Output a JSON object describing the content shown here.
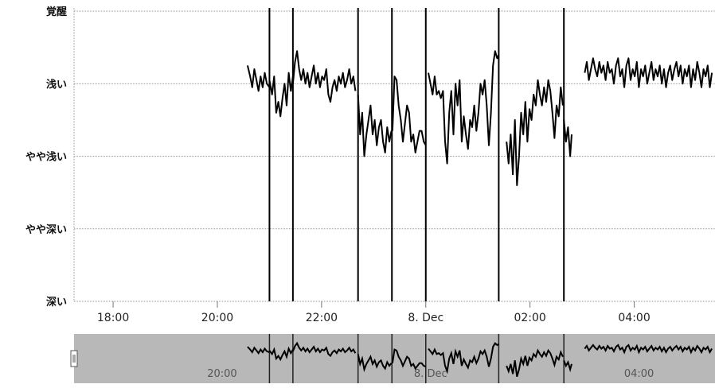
{
  "chart_data": {
    "type": "line",
    "title": "",
    "xlabel": "",
    "ylabel": "",
    "y_categories": [
      "深い",
      "やや深い",
      "やや浅い",
      "浅い",
      "覚醒"
    ],
    "ylim": [
      0,
      4
    ],
    "xlim": [
      17.25,
      29.55
    ],
    "x_ticks": [
      {
        "x": 18,
        "label": "18:00"
      },
      {
        "x": 20,
        "label": "20:00"
      },
      {
        "x": 22,
        "label": "22:00"
      },
      {
        "x": 24,
        "label": "8. Dec"
      },
      {
        "x": 26,
        "label": "02:00"
      },
      {
        "x": 28,
        "label": "04:00"
      }
    ],
    "navigator_ticks": [
      {
        "x": 20,
        "label": "20:00"
      },
      {
        "x": 24,
        "label": "8. Dec"
      },
      {
        "x": 28,
        "label": "04:00"
      }
    ],
    "grid": true,
    "gaps_x": [
      21.0,
      21.45,
      22.7,
      23.35,
      24.0,
      25.4,
      26.65
    ],
    "series": [
      {
        "segments": [
          [
            [
              20.58,
              3.25
            ],
            [
              20.63,
              3.1
            ],
            [
              20.67,
              2.95
            ],
            [
              20.71,
              3.2
            ],
            [
              20.75,
              3.05
            ],
            [
              20.79,
              2.9
            ],
            [
              20.83,
              3.1
            ],
            [
              20.87,
              2.95
            ],
            [
              20.91,
              3.15
            ],
            [
              20.95,
              3.0
            ],
            [
              21.0,
              2.95
            ]
          ],
          [
            [
              21.0,
              3.05
            ],
            [
              21.05,
              2.85
            ],
            [
              21.09,
              3.1
            ],
            [
              21.13,
              2.6
            ],
            [
              21.17,
              2.75
            ],
            [
              21.21,
              2.55
            ],
            [
              21.25,
              2.8
            ],
            [
              21.29,
              3.0
            ],
            [
              21.33,
              2.7
            ],
            [
              21.37,
              3.15
            ],
            [
              21.41,
              2.9
            ],
            [
              21.45,
              3.1
            ]
          ],
          [
            [
              21.45,
              3.0
            ],
            [
              21.49,
              3.3
            ],
            [
              21.53,
              3.45
            ],
            [
              21.57,
              3.2
            ],
            [
              21.61,
              3.05
            ],
            [
              21.65,
              3.2
            ],
            [
              21.69,
              3.0
            ],
            [
              21.73,
              3.15
            ],
            [
              21.77,
              2.95
            ],
            [
              21.81,
              3.1
            ],
            [
              21.85,
              3.25
            ],
            [
              21.89,
              3.0
            ],
            [
              21.93,
              3.15
            ],
            [
              21.97,
              2.95
            ],
            [
              22.01,
              3.1
            ],
            [
              22.05,
              3.05
            ],
            [
              22.09,
              3.2
            ],
            [
              22.13,
              2.85
            ],
            [
              22.17,
              2.75
            ],
            [
              22.21,
              2.95
            ],
            [
              22.25,
              3.05
            ],
            [
              22.29,
              2.9
            ],
            [
              22.33,
              3.1
            ],
            [
              22.37,
              3.0
            ],
            [
              22.41,
              3.15
            ],
            [
              22.45,
              2.95
            ],
            [
              22.49,
              3.05
            ],
            [
              22.53,
              3.2
            ],
            [
              22.57,
              3.0
            ],
            [
              22.61,
              3.1
            ],
            [
              22.65,
              2.9
            ]
          ],
          [
            [
              22.7,
              2.85
            ],
            [
              22.74,
              2.3
            ],
            [
              22.78,
              2.6
            ],
            [
              22.82,
              2.0
            ],
            [
              22.86,
              2.3
            ],
            [
              22.9,
              2.5
            ],
            [
              22.94,
              2.7
            ],
            [
              22.98,
              2.3
            ],
            [
              23.02,
              2.5
            ],
            [
              23.06,
              2.15
            ],
            [
              23.1,
              2.4
            ],
            [
              23.14,
              2.5
            ],
            [
              23.18,
              2.2
            ],
            [
              23.22,
              2.05
            ],
            [
              23.26,
              2.4
            ],
            [
              23.3,
              2.2
            ],
            [
              23.34,
              2.35
            ]
          ],
          [
            [
              23.36,
              2.35
            ],
            [
              23.4,
              3.1
            ],
            [
              23.44,
              3.05
            ],
            [
              23.48,
              2.7
            ],
            [
              23.52,
              2.5
            ],
            [
              23.56,
              2.2
            ],
            [
              23.6,
              2.45
            ],
            [
              23.64,
              2.7
            ],
            [
              23.68,
              2.6
            ],
            [
              23.72,
              2.2
            ],
            [
              23.76,
              2.3
            ],
            [
              23.8,
              2.05
            ],
            [
              23.84,
              2.2
            ],
            [
              23.88,
              2.35
            ],
            [
              23.92,
              2.35
            ],
            [
              23.96,
              2.2
            ],
            [
              24.0,
              2.15
            ]
          ],
          [
            [
              24.05,
              3.15
            ],
            [
              24.09,
              3.0
            ],
            [
              24.13,
              2.85
            ],
            [
              24.17,
              3.1
            ],
            [
              24.21,
              2.85
            ],
            [
              24.25,
              2.9
            ],
            [
              24.29,
              2.8
            ],
            [
              24.33,
              2.9
            ],
            [
              24.37,
              2.2
            ],
            [
              24.41,
              1.9
            ],
            [
              24.45,
              2.6
            ],
            [
              24.49,
              2.9
            ],
            [
              24.53,
              2.3
            ],
            [
              24.57,
              3.0
            ],
            [
              24.61,
              2.7
            ],
            [
              24.65,
              3.05
            ],
            [
              24.69,
              2.2
            ],
            [
              24.73,
              2.55
            ],
            [
              24.77,
              2.3
            ],
            [
              24.81,
              2.1
            ],
            [
              24.85,
              2.5
            ],
            [
              24.89,
              2.4
            ],
            [
              24.93,
              2.7
            ],
            [
              24.97,
              2.35
            ],
            [
              25.01,
              2.6
            ],
            [
              25.05,
              3.0
            ],
            [
              25.09,
              2.85
            ],
            [
              25.13,
              3.05
            ],
            [
              25.17,
              2.7
            ],
            [
              25.21,
              2.15
            ],
            [
              25.25,
              2.6
            ],
            [
              25.29,
              3.25
            ],
            [
              25.33,
              3.45
            ],
            [
              25.37,
              3.35
            ],
            [
              25.4,
              3.4
            ]
          ],
          [
            [
              25.55,
              2.2
            ],
            [
              25.59,
              1.9
            ],
            [
              25.63,
              2.3
            ],
            [
              25.67,
              1.75
            ],
            [
              25.71,
              2.5
            ],
            [
              25.75,
              1.6
            ],
            [
              25.79,
              2.0
            ],
            [
              25.83,
              2.6
            ],
            [
              25.87,
              2.3
            ],
            [
              25.91,
              2.75
            ],
            [
              25.95,
              2.2
            ],
            [
              25.99,
              2.65
            ],
            [
              26.03,
              2.5
            ],
            [
              26.07,
              2.85
            ],
            [
              26.11,
              2.7
            ],
            [
              26.15,
              3.05
            ],
            [
              26.19,
              2.85
            ],
            [
              26.23,
              2.7
            ],
            [
              26.27,
              2.95
            ],
            [
              26.31,
              2.75
            ],
            [
              26.35,
              3.05
            ],
            [
              26.39,
              2.9
            ],
            [
              26.43,
              2.6
            ],
            [
              26.47,
              2.25
            ],
            [
              26.51,
              2.7
            ],
            [
              26.55,
              2.55
            ],
            [
              26.59,
              2.95
            ],
            [
              26.63,
              2.7
            ]
          ],
          [
            [
              26.65,
              2.5
            ],
            [
              26.69,
              2.2
            ],
            [
              26.73,
              2.4
            ],
            [
              26.77,
              2.0
            ],
            [
              26.8,
              2.3
            ]
          ],
          [
            [
              27.05,
              3.15
            ],
            [
              27.09,
              3.3
            ],
            [
              27.13,
              3.05
            ],
            [
              27.17,
              3.2
            ],
            [
              27.21,
              3.35
            ],
            [
              27.25,
              3.2
            ],
            [
              27.29,
              3.1
            ],
            [
              27.33,
              3.3
            ],
            [
              27.37,
              3.15
            ],
            [
              27.41,
              3.25
            ],
            [
              27.45,
              3.05
            ],
            [
              27.49,
              3.3
            ],
            [
              27.53,
              3.15
            ],
            [
              27.57,
              3.2
            ],
            [
              27.61,
              3.0
            ],
            [
              27.65,
              3.25
            ],
            [
              27.69,
              3.35
            ],
            [
              27.73,
              3.1
            ],
            [
              27.77,
              3.2
            ],
            [
              27.81,
              2.95
            ],
            [
              27.85,
              3.25
            ],
            [
              27.89,
              3.35
            ],
            [
              27.93,
              3.05
            ],
            [
              27.97,
              3.2
            ],
            [
              28.01,
              3.1
            ],
            [
              28.05,
              3.3
            ],
            [
              28.09,
              2.95
            ],
            [
              28.13,
              3.2
            ],
            [
              28.17,
              3.1
            ],
            [
              28.21,
              3.25
            ],
            [
              28.25,
              3.0
            ],
            [
              28.29,
              3.15
            ],
            [
              28.33,
              3.3
            ],
            [
              28.37,
              3.05
            ],
            [
              28.41,
              3.2
            ],
            [
              28.45,
              3.1
            ],
            [
              28.49,
              3.25
            ],
            [
              28.53,
              3.0
            ],
            [
              28.57,
              3.2
            ],
            [
              28.61,
              2.95
            ],
            [
              28.65,
              3.15
            ],
            [
              28.69,
              3.25
            ],
            [
              28.73,
              3.05
            ],
            [
              28.77,
              3.2
            ],
            [
              28.81,
              3.3
            ],
            [
              28.85,
              3.1
            ],
            [
              28.89,
              3.25
            ],
            [
              28.93,
              3.0
            ],
            [
              28.97,
              3.2
            ],
            [
              29.01,
              3.1
            ],
            [
              29.05,
              3.25
            ],
            [
              29.09,
              2.95
            ],
            [
              29.13,
              3.2
            ],
            [
              29.17,
              3.05
            ],
            [
              29.21,
              3.3
            ],
            [
              29.25,
              3.15
            ],
            [
              29.29,
              2.95
            ],
            [
              29.33,
              3.2
            ],
            [
              29.37,
              3.1
            ],
            [
              29.41,
              3.25
            ],
            [
              29.45,
              2.95
            ],
            [
              29.49,
              3.15
            ]
          ]
        ]
      }
    ]
  }
}
